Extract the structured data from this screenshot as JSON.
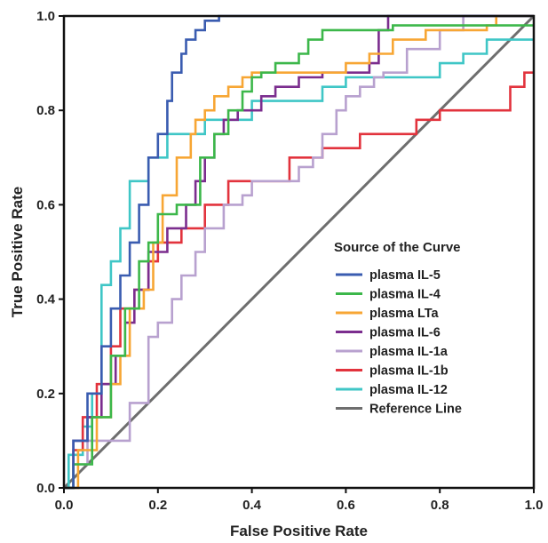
{
  "chart_data": {
    "type": "line",
    "title": "",
    "xlabel": "False Positive Rate",
    "ylabel": "True Positive Rate",
    "xlim": [
      0,
      1
    ],
    "ylim": [
      0,
      1
    ],
    "x_ticks": [
      "0.0",
      "0.2",
      "0.4",
      "0.6",
      "0.8",
      "1.0"
    ],
    "y_ticks": [
      "0.0",
      "0.2",
      "0.4",
      "0.6",
      "0.8",
      "1.0"
    ],
    "grid": false,
    "legend": {
      "title": "Source of the Curve",
      "placement": "right-center"
    },
    "series": [
      {
        "name": "plasma IL-5",
        "color": "#3a5cb0",
        "x": [
          0,
          0.02,
          0.02,
          0.05,
          0.05,
          0.08,
          0.08,
          0.1,
          0.1,
          0.12,
          0.12,
          0.14,
          0.14,
          0.16,
          0.16,
          0.18,
          0.18,
          0.2,
          0.2,
          0.22,
          0.22,
          0.23,
          0.23,
          0.25,
          0.25,
          0.26,
          0.26,
          0.28,
          0.28,
          0.3,
          0.3,
          0.33,
          0.33,
          1.0
        ],
        "y": [
          0,
          0,
          0.1,
          0.1,
          0.2,
          0.2,
          0.3,
          0.3,
          0.38,
          0.38,
          0.45,
          0.45,
          0.52,
          0.52,
          0.6,
          0.6,
          0.7,
          0.7,
          0.75,
          0.75,
          0.82,
          0.82,
          0.88,
          0.88,
          0.92,
          0.92,
          0.95,
          0.95,
          0.97,
          0.97,
          0.99,
          0.99,
          1.0,
          1.0
        ]
      },
      {
        "name": "plasma IL-4",
        "color": "#3cb74a",
        "x": [
          0,
          0.02,
          0.02,
          0.06,
          0.06,
          0.1,
          0.1,
          0.13,
          0.13,
          0.16,
          0.16,
          0.18,
          0.18,
          0.2,
          0.2,
          0.24,
          0.24,
          0.29,
          0.29,
          0.32,
          0.32,
          0.35,
          0.35,
          0.38,
          0.38,
          0.4,
          0.4,
          0.42,
          0.42,
          0.45,
          0.45,
          0.5,
          0.5,
          0.52,
          0.52,
          0.55,
          0.55,
          0.6,
          0.6,
          0.7,
          0.7,
          0.8,
          0.8,
          1.0
        ],
        "y": [
          0,
          0,
          0.05,
          0.05,
          0.15,
          0.15,
          0.28,
          0.28,
          0.38,
          0.38,
          0.48,
          0.48,
          0.52,
          0.52,
          0.58,
          0.58,
          0.6,
          0.6,
          0.7,
          0.7,
          0.75,
          0.75,
          0.8,
          0.8,
          0.84,
          0.84,
          0.87,
          0.87,
          0.88,
          0.88,
          0.9,
          0.9,
          0.92,
          0.92,
          0.95,
          0.95,
          0.97,
          0.97,
          0.97,
          0.97,
          0.98,
          0.98,
          0.98,
          0.98
        ]
      },
      {
        "name": "plasma LTa",
        "color": "#f7a634",
        "x": [
          0,
          0.03,
          0.03,
          0.07,
          0.07,
          0.1,
          0.1,
          0.12,
          0.12,
          0.14,
          0.14,
          0.17,
          0.17,
          0.19,
          0.19,
          0.21,
          0.21,
          0.24,
          0.24,
          0.27,
          0.27,
          0.28,
          0.28,
          0.3,
          0.3,
          0.32,
          0.32,
          0.35,
          0.35,
          0.38,
          0.38,
          0.4,
          0.4,
          0.6,
          0.6,
          0.65,
          0.65,
          0.7,
          0.7,
          0.77,
          0.77,
          0.9,
          0.9,
          0.92,
          0.92,
          1.0
        ],
        "y": [
          0,
          0,
          0.08,
          0.08,
          0.15,
          0.15,
          0.22,
          0.22,
          0.28,
          0.28,
          0.38,
          0.38,
          0.42,
          0.42,
          0.52,
          0.52,
          0.62,
          0.62,
          0.7,
          0.7,
          0.75,
          0.75,
          0.78,
          0.78,
          0.8,
          0.8,
          0.83,
          0.83,
          0.85,
          0.85,
          0.87,
          0.87,
          0.88,
          0.88,
          0.9,
          0.9,
          0.92,
          0.92,
          0.95,
          0.95,
          0.97,
          0.97,
          0.98,
          0.98,
          1.0,
          1.0
        ]
      },
      {
        "name": "plasma IL-6",
        "color": "#7b2d8e",
        "x": [
          0,
          0.02,
          0.02,
          0.05,
          0.05,
          0.08,
          0.08,
          0.11,
          0.11,
          0.13,
          0.13,
          0.15,
          0.15,
          0.18,
          0.18,
          0.22,
          0.22,
          0.26,
          0.26,
          0.28,
          0.28,
          0.3,
          0.3,
          0.32,
          0.32,
          0.34,
          0.34,
          0.37,
          0.37,
          0.42,
          0.42,
          0.45,
          0.45,
          0.5,
          0.5,
          0.55,
          0.55,
          0.6,
          0.6,
          0.65,
          0.65,
          0.67,
          0.67,
          0.69,
          0.69,
          1.0
        ],
        "y": [
          0,
          0,
          0.1,
          0.1,
          0.15,
          0.15,
          0.22,
          0.22,
          0.28,
          0.28,
          0.35,
          0.35,
          0.42,
          0.42,
          0.5,
          0.5,
          0.55,
          0.55,
          0.6,
          0.6,
          0.65,
          0.65,
          0.7,
          0.7,
          0.75,
          0.75,
          0.78,
          0.78,
          0.8,
          0.8,
          0.83,
          0.83,
          0.85,
          0.85,
          0.87,
          0.87,
          0.88,
          0.88,
          0.88,
          0.88,
          0.9,
          0.9,
          0.97,
          0.97,
          1.0,
          1.0
        ]
      },
      {
        "name": "plasma IL-1a",
        "color": "#b8a1cf",
        "x": [
          0,
          0.02,
          0.02,
          0.05,
          0.05,
          0.1,
          0.1,
          0.14,
          0.14,
          0.18,
          0.18,
          0.2,
          0.2,
          0.23,
          0.23,
          0.25,
          0.25,
          0.28,
          0.28,
          0.3,
          0.3,
          0.34,
          0.34,
          0.38,
          0.38,
          0.4,
          0.4,
          0.43,
          0.43,
          0.5,
          0.5,
          0.53,
          0.53,
          0.55,
          0.55,
          0.58,
          0.58,
          0.6,
          0.6,
          0.63,
          0.63,
          0.66,
          0.66,
          0.68,
          0.68,
          0.73,
          0.73,
          0.8,
          0.8,
          0.85,
          0.85,
          1.0
        ],
        "y": [
          0,
          0,
          0.05,
          0.05,
          0.1,
          0.1,
          0.1,
          0.1,
          0.18,
          0.18,
          0.32,
          0.32,
          0.35,
          0.35,
          0.4,
          0.4,
          0.45,
          0.45,
          0.5,
          0.5,
          0.55,
          0.55,
          0.6,
          0.6,
          0.62,
          0.62,
          0.65,
          0.65,
          0.65,
          0.65,
          0.68,
          0.68,
          0.7,
          0.7,
          0.75,
          0.75,
          0.8,
          0.8,
          0.83,
          0.83,
          0.85,
          0.85,
          0.87,
          0.87,
          0.88,
          0.88,
          0.93,
          0.93,
          0.97,
          0.97,
          1.0,
          1.0
        ]
      },
      {
        "name": "plasma IL-1b",
        "color": "#e2333d",
        "x": [
          0,
          0.02,
          0.02,
          0.04,
          0.04,
          0.07,
          0.07,
          0.1,
          0.1,
          0.12,
          0.12,
          0.15,
          0.15,
          0.18,
          0.18,
          0.2,
          0.2,
          0.25,
          0.25,
          0.3,
          0.3,
          0.35,
          0.35,
          0.4,
          0.4,
          0.48,
          0.48,
          0.55,
          0.55,
          0.63,
          0.63,
          0.75,
          0.75,
          0.8,
          0.8,
          0.9,
          0.9,
          0.95,
          0.95,
          0.98,
          0.98,
          1.0
        ],
        "y": [
          0,
          0,
          0.08,
          0.08,
          0.15,
          0.15,
          0.22,
          0.22,
          0.3,
          0.3,
          0.38,
          0.38,
          0.42,
          0.42,
          0.48,
          0.48,
          0.52,
          0.52,
          0.55,
          0.55,
          0.6,
          0.6,
          0.65,
          0.65,
          0.65,
          0.65,
          0.7,
          0.7,
          0.72,
          0.72,
          0.75,
          0.75,
          0.78,
          0.78,
          0.8,
          0.8,
          0.8,
          0.8,
          0.85,
          0.85,
          0.88,
          0.88
        ]
      },
      {
        "name": "plasma IL-12",
        "color": "#3fc6c6",
        "x": [
          0,
          0.01,
          0.01,
          0.04,
          0.04,
          0.06,
          0.06,
          0.08,
          0.08,
          0.1,
          0.1,
          0.12,
          0.12,
          0.14,
          0.14,
          0.18,
          0.18,
          0.22,
          0.22,
          0.3,
          0.3,
          0.4,
          0.4,
          0.55,
          0.55,
          0.6,
          0.6,
          0.7,
          0.7,
          0.8,
          0.8,
          0.85,
          0.85,
          0.9,
          0.9,
          0.95,
          0.95,
          1.0
        ],
        "y": [
          0,
          0,
          0.07,
          0.07,
          0.13,
          0.13,
          0.2,
          0.2,
          0.43,
          0.43,
          0.48,
          0.48,
          0.55,
          0.55,
          0.65,
          0.65,
          0.7,
          0.7,
          0.75,
          0.75,
          0.78,
          0.78,
          0.82,
          0.82,
          0.85,
          0.85,
          0.87,
          0.87,
          0.87,
          0.87,
          0.9,
          0.9,
          0.92,
          0.92,
          0.95,
          0.95,
          0.95,
          0.95
        ]
      },
      {
        "name": "Reference Line",
        "color": "#6e6e6e",
        "x": [
          0,
          1
        ],
        "y": [
          0,
          1
        ]
      }
    ]
  }
}
